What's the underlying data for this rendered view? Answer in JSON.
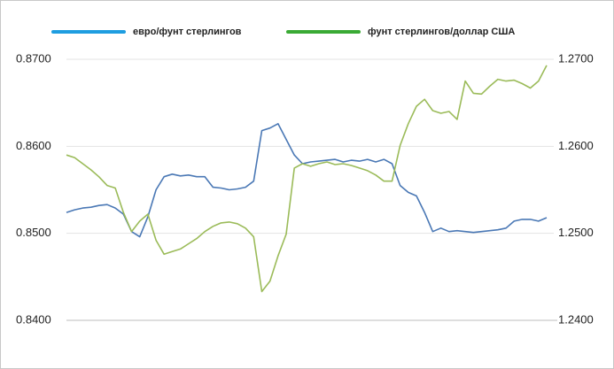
{
  "chart_data": {
    "type": "line",
    "series": [
      {
        "name": "евро/фунт стерлингов",
        "color": "#4a78b5",
        "legend_color": "#1e9de0",
        "axis": "y",
        "values": [
          0.8524,
          0.8527,
          0.8529,
          0.853,
          0.8532,
          0.8533,
          0.8529,
          0.8522,
          0.8502,
          0.8496,
          0.8519,
          0.855,
          0.8565,
          0.8568,
          0.8566,
          0.8567,
          0.8565,
          0.8565,
          0.8553,
          0.8552,
          0.855,
          0.8551,
          0.8553,
          0.856,
          0.8618,
          0.8621,
          0.8626,
          0.8608,
          0.859,
          0.858,
          0.8582,
          0.8583,
          0.8584,
          0.8585,
          0.8582,
          0.8584,
          0.8583,
          0.8585,
          0.8582,
          0.8585,
          0.858,
          0.8555,
          0.8547,
          0.8543,
          0.8524,
          0.8502,
          0.8506,
          0.8502,
          0.8503,
          0.8502,
          0.8501,
          0.8502,
          0.8503,
          0.8504,
          0.8506,
          0.8514,
          0.8516,
          0.8516,
          0.8514,
          0.8518
        ]
      },
      {
        "name": "фунт стерлингов/доллар США",
        "color": "#9bbb59",
        "legend_color": "#3aaa35",
        "axis": "y2",
        "values": [
          1.259,
          1.2587,
          1.258,
          1.2573,
          1.2565,
          1.2555,
          1.2552,
          1.2524,
          1.2502,
          1.2514,
          1.2522,
          1.2492,
          1.2476,
          1.2479,
          1.2482,
          1.2488,
          1.2494,
          1.2502,
          1.2508,
          1.2512,
          1.2513,
          1.2511,
          1.2506,
          1.2496,
          1.2433,
          1.2445,
          1.2474,
          1.2499,
          1.2575,
          1.258,
          1.2577,
          1.258,
          1.2582,
          1.2579,
          1.258,
          1.2578,
          1.2575,
          1.2572,
          1.2567,
          1.256,
          1.256,
          1.2601,
          1.2626,
          1.2646,
          1.2654,
          1.2641,
          1.2638,
          1.264,
          1.2631,
          1.2675,
          1.2661,
          1.266,
          1.2669,
          1.2677,
          1.2675,
          1.2676,
          1.2672,
          1.2667,
          1.2675,
          1.2693
        ]
      }
    ],
    "ylim": [
      0.84,
      0.87
    ],
    "yticks": [
      {
        "value": 0.84,
        "label": "0.8400"
      },
      {
        "value": 0.85,
        "label": "0.8500"
      },
      {
        "value": 0.86,
        "label": "0.8600"
      },
      {
        "value": 0.87,
        "label": "0.8700"
      }
    ],
    "y2lim": [
      1.24,
      1.27
    ],
    "y2ticks": [
      {
        "value": 1.24,
        "label": "1.2400"
      },
      {
        "value": 1.25,
        "label": "1.2500"
      },
      {
        "value": 1.26,
        "label": "1.2600"
      },
      {
        "value": 1.27,
        "label": "1.2700"
      }
    ],
    "grid": true,
    "legend": "top"
  }
}
